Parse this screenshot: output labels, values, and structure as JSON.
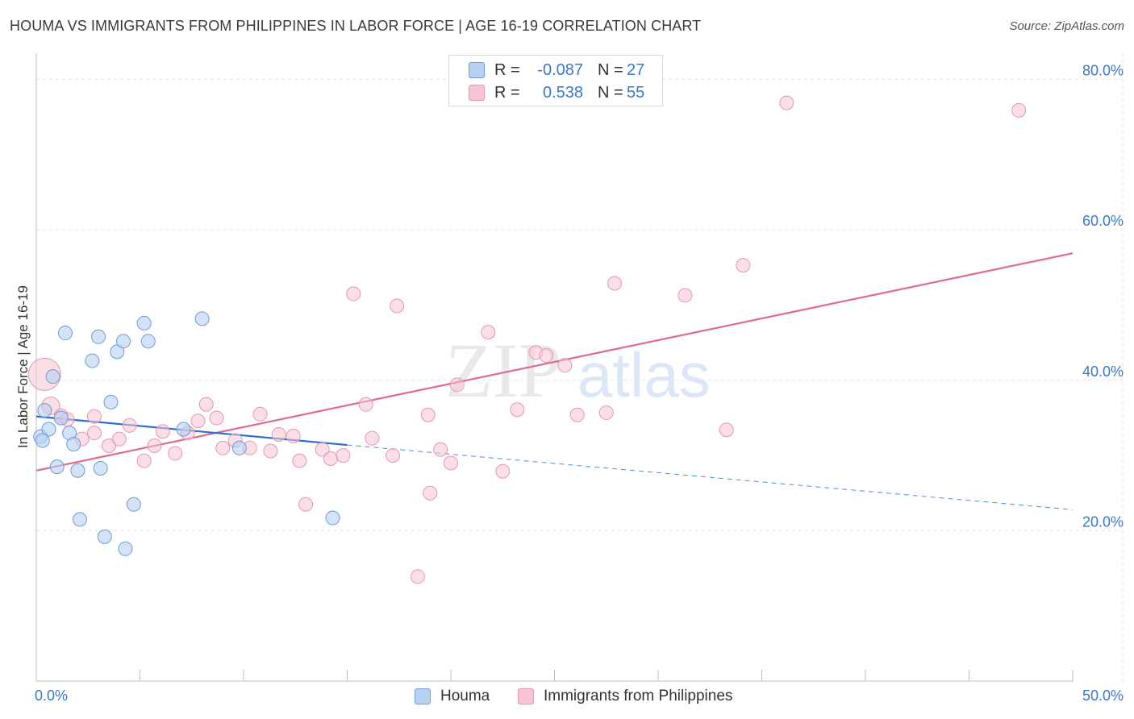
{
  "title": "HOUMA VS IMMIGRANTS FROM PHILIPPINES IN LABOR FORCE | AGE 16-19 CORRELATION CHART",
  "source": "Source: ZipAtlas.com",
  "watermark": {
    "zip": "ZIP",
    "atlas": "atlas"
  },
  "legend": {
    "rows": [
      {
        "r_label": "R =",
        "r_value": "-0.087",
        "n_label": "N =",
        "n_value": "27"
      },
      {
        "r_label": "R =",
        "r_value": "0.538",
        "n_label": "N =",
        "n_value": "55"
      }
    ]
  },
  "bottom_legend": {
    "houma": "Houma",
    "philippines": "Immigrants from Philippines"
  },
  "colors": {
    "houma_fill": "#b8d0f2",
    "houma_stroke": "#6d9bd8",
    "houma_line": "#2b6fd0",
    "phil_fill": "#f7c4d4",
    "phil_stroke": "#e896b1",
    "phil_line": "#e06a92",
    "axis_text": "#3b78c8",
    "grid": "#e3e3e3"
  },
  "chart_data": {
    "type": "scatter",
    "title": "HOUMA VS IMMIGRANTS FROM PHILIPPINES IN LABOR FORCE | AGE 16-19 CORRELATION CHART",
    "xlabel": "",
    "ylabel": "In Labor Force | Age 16-19",
    "xlim": [
      0,
      50
    ],
    "ylim": [
      0,
      82
    ],
    "x_tick_labels": [
      "0.0%",
      "50.0%"
    ],
    "y_ticks": [
      20,
      40,
      60,
      80
    ],
    "y_tick_labels": [
      "20.0%",
      "40.0%",
      "60.0%",
      "80.0%"
    ],
    "grid": true,
    "series": [
      {
        "name": "Houma",
        "r": -0.087,
        "n": 27,
        "points": [
          [
            0.2,
            32.5
          ],
          [
            0.4,
            36.0
          ],
          [
            0.6,
            33.5
          ],
          [
            0.8,
            40.5
          ],
          [
            1.0,
            28.5
          ],
          [
            1.2,
            35.0
          ],
          [
            1.4,
            46.3
          ],
          [
            1.6,
            33.0
          ],
          [
            1.8,
            31.5
          ],
          [
            2.0,
            28.0
          ],
          [
            2.1,
            21.5
          ],
          [
            2.7,
            42.6
          ],
          [
            3.0,
            45.8
          ],
          [
            3.1,
            28.3
          ],
          [
            3.3,
            19.2
          ],
          [
            3.6,
            37.1
          ],
          [
            3.9,
            43.8
          ],
          [
            4.2,
            45.2
          ],
          [
            4.3,
            17.6
          ],
          [
            4.7,
            23.5
          ],
          [
            5.2,
            47.6
          ],
          [
            5.4,
            45.2
          ],
          [
            7.1,
            33.5
          ],
          [
            8.0,
            48.2
          ],
          [
            9.8,
            31.0
          ],
          [
            14.3,
            21.7
          ],
          [
            0.3,
            32.0
          ]
        ],
        "trend_solid": [
          [
            0,
            35.2
          ],
          [
            15,
            31.4
          ]
        ],
        "trend_dashed": [
          [
            15,
            31.4
          ],
          [
            50,
            22.8
          ]
        ]
      },
      {
        "name": "Immigrants from Philippines",
        "r": 0.538,
        "n": 55,
        "points": [
          [
            0.4,
            40.8
          ],
          [
            0.7,
            36.6
          ],
          [
            1.2,
            35.3
          ],
          [
            1.5,
            34.8
          ],
          [
            2.2,
            32.2
          ],
          [
            2.8,
            33.0
          ],
          [
            2.8,
            35.2
          ],
          [
            3.5,
            31.3
          ],
          [
            4.0,
            32.2
          ],
          [
            4.5,
            34.0
          ],
          [
            5.2,
            29.3
          ],
          [
            5.7,
            31.3
          ],
          [
            6.1,
            33.2
          ],
          [
            6.7,
            30.3
          ],
          [
            7.3,
            33.0
          ],
          [
            7.8,
            34.6
          ],
          [
            8.2,
            36.8
          ],
          [
            8.7,
            35.0
          ],
          [
            9.0,
            31.0
          ],
          [
            9.6,
            32.0
          ],
          [
            10.3,
            31.0
          ],
          [
            10.8,
            35.5
          ],
          [
            11.3,
            30.6
          ],
          [
            11.7,
            32.8
          ],
          [
            12.4,
            32.6
          ],
          [
            12.7,
            29.3
          ],
          [
            13.0,
            23.5
          ],
          [
            13.8,
            30.8
          ],
          [
            14.2,
            29.6
          ],
          [
            14.8,
            30.0
          ],
          [
            15.3,
            51.5
          ],
          [
            15.9,
            36.8
          ],
          [
            16.2,
            32.3
          ],
          [
            17.2,
            30.0
          ],
          [
            17.4,
            49.9
          ],
          [
            18.4,
            13.9
          ],
          [
            18.9,
            35.4
          ],
          [
            19.0,
            25.0
          ],
          [
            19.5,
            30.8
          ],
          [
            20.0,
            29.0
          ],
          [
            20.3,
            39.4
          ],
          [
            21.8,
            46.4
          ],
          [
            22.5,
            27.9
          ],
          [
            23.2,
            36.1
          ],
          [
            24.1,
            43.7
          ],
          [
            24.6,
            43.3
          ],
          [
            25.5,
            42.0
          ],
          [
            26.1,
            35.4
          ],
          [
            27.5,
            35.7
          ],
          [
            27.9,
            52.9
          ],
          [
            31.3,
            51.3
          ],
          [
            33.3,
            33.4
          ],
          [
            34.1,
            55.3
          ],
          [
            47.4,
            75.9
          ],
          [
            36.2,
            76.9
          ]
        ],
        "trend": [
          [
            0,
            28.0
          ],
          [
            50,
            56.9
          ]
        ]
      }
    ]
  }
}
